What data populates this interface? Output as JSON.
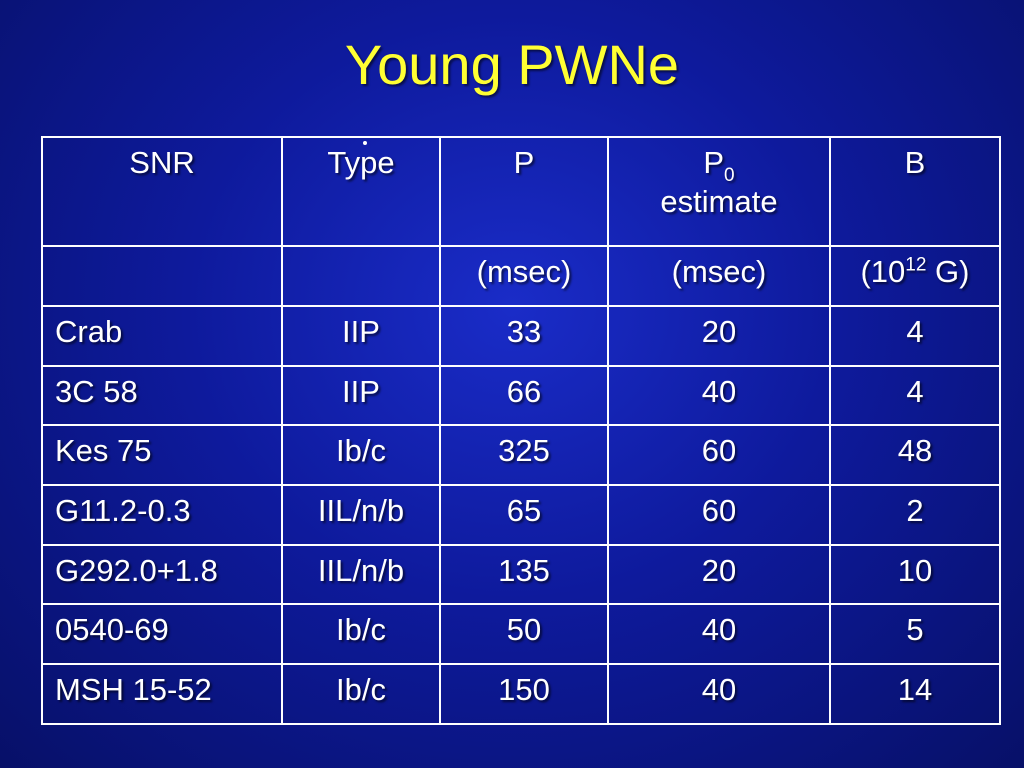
{
  "slide": {
    "title": "Young PWNe"
  },
  "table": {
    "header": {
      "snr": "SNR",
      "type": "Type",
      "p": "P",
      "p0_main": "P",
      "p0_sub": "0",
      "p0_estimate": "estimate",
      "b": "B"
    },
    "units": {
      "snr": "",
      "type": "",
      "p": "(msec)",
      "p0": "(msec)",
      "b_open": "(10",
      "b_exp": "12",
      "b_close": " G)"
    },
    "rows": [
      {
        "snr": "Crab",
        "type": "IIP",
        "p": "33",
        "p0": "20",
        "b": "4"
      },
      {
        "snr": "3C 58",
        "type": "IIP",
        "p": "66",
        "p0": "40",
        "b": "4"
      },
      {
        "snr": "Kes 75",
        "type": "Ib/c",
        "p": "325",
        "p0": "60",
        "b": "48"
      },
      {
        "snr": "G11.2-0.3",
        "type": "IIL/n/b",
        "p": "65",
        "p0": "60",
        "b": "2"
      },
      {
        "snr": "G292.0+1.8",
        "type": "IIL/n/b",
        "p": "135",
        "p0": "20",
        "b": "10"
      },
      {
        "snr": "0540-69",
        "type": "Ib/c",
        "p": "50",
        "p0": "40",
        "b": "5"
      },
      {
        "snr": "MSH 15-52",
        "type": "Ib/c",
        "p": "150",
        "p0": "40",
        "b": "14"
      }
    ]
  }
}
